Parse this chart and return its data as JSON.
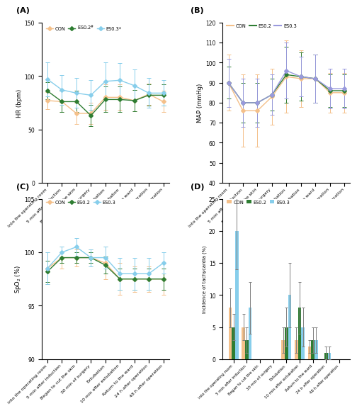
{
  "x_labels": [
    "Into the operating room",
    "5 min after induction",
    "Began to cut the skin",
    "30 min of surgery",
    "Extubation",
    "10 min after extubation",
    "Return to the ward",
    "24 h after operation",
    "48 h after operation"
  ],
  "HR": {
    "CON": [
      77,
      76,
      65,
      65,
      80,
      80,
      77,
      83,
      76
    ],
    "ES02": [
      86,
      76,
      76,
      63,
      78,
      78,
      77,
      82,
      82
    ],
    "ES03": [
      97,
      87,
      84,
      82,
      95,
      96,
      91,
      84,
      84
    ],
    "CON_err": [
      8,
      10,
      10,
      10,
      12,
      12,
      10,
      10,
      10
    ],
    "ES02_err": [
      8,
      10,
      10,
      10,
      12,
      12,
      10,
      10,
      10
    ],
    "ES03_err": [
      16,
      14,
      14,
      14,
      18,
      16,
      15,
      14,
      12
    ]
  },
  "MAP": {
    "CON": [
      90,
      76,
      76,
      83,
      93,
      92,
      92,
      85,
      85
    ],
    "ES02": [
      90,
      80,
      80,
      84,
      94,
      93,
      92,
      86,
      86
    ],
    "ES03": [
      90,
      80,
      80,
      84,
      96,
      93,
      92,
      87,
      87
    ],
    "CON_err": [
      14,
      18,
      18,
      14,
      18,
      14,
      12,
      10,
      10
    ],
    "ES02_err": [
      8,
      10,
      10,
      8,
      14,
      12,
      12,
      8,
      8
    ],
    "ES03_err": [
      12,
      12,
      12,
      10,
      14,
      10,
      12,
      10,
      10
    ]
  },
  "SpO2": {
    "CON": [
      98.5,
      99.5,
      99.5,
      99.5,
      99.0,
      97.5,
      97.5,
      97.5,
      97.5
    ],
    "ES02": [
      98.2,
      99.5,
      99.5,
      99.5,
      98.8,
      97.5,
      97.5,
      97.5,
      97.5
    ],
    "ES03": [
      98.5,
      100.0,
      100.5,
      99.5,
      99.5,
      98.0,
      98.0,
      98.0,
      99.0
    ],
    "CON_err": [
      1.5,
      1.0,
      0.8,
      0.8,
      1.5,
      1.5,
      1.2,
      1.2,
      1.5
    ],
    "ES02_err": [
      1.0,
      0.5,
      0.5,
      0.5,
      0.8,
      1.0,
      1.0,
      1.0,
      1.0
    ],
    "ES03_err": [
      1.5,
      0.5,
      0.8,
      0.8,
      1.0,
      1.5,
      1.5,
      1.5,
      1.0
    ]
  },
  "Tachy": {
    "CON": [
      8,
      5,
      0,
      0,
      3,
      3,
      2,
      0,
      0
    ],
    "ES02": [
      5,
      3,
      0,
      0,
      5,
      8,
      3,
      1,
      0
    ],
    "ES03": [
      20,
      8,
      0,
      0,
      10,
      5,
      3,
      1,
      0
    ],
    "CON_err": [
      3,
      2,
      0,
      0,
      2,
      2,
      1,
      0,
      0
    ],
    "ES02_err": [
      2,
      2,
      0,
      0,
      3,
      4,
      2,
      1,
      0
    ],
    "ES03_err": [
      6,
      4,
      0,
      0,
      5,
      3,
      2,
      1,
      0
    ]
  },
  "colors": {
    "CON": "#F4C08A",
    "ES02": "#2E7D32",
    "ES03": "#87CEEB",
    "ES03_map": "#9999DD"
  }
}
